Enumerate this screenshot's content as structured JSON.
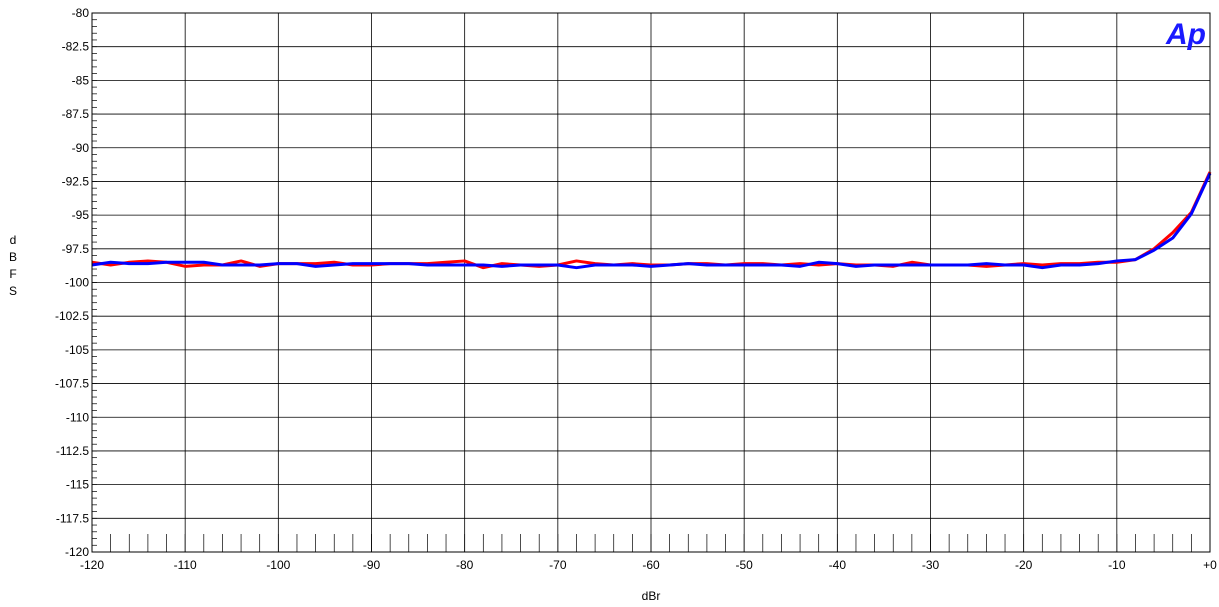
{
  "chart_data": {
    "type": "line",
    "xlabel": "dBr",
    "ylabel": "dBFS",
    "xlim": [
      -120,
      0
    ],
    "ylim": [
      -120,
      -80
    ],
    "x_ticks": [
      -120,
      -110,
      -100,
      -90,
      -80,
      -70,
      -60,
      -50,
      -40,
      -30,
      -20,
      -10,
      0
    ],
    "x_tick_labels": [
      "-120",
      "-110",
      "-100",
      "-90",
      "-80",
      "-70",
      "-60",
      "-50",
      "-40",
      "-30",
      "-20",
      "-10",
      "+0"
    ],
    "y_ticks": [
      -80,
      -82.5,
      -85,
      -87.5,
      -90,
      -92.5,
      -95,
      -97.5,
      -100,
      -102.5,
      -105,
      -107.5,
      -110,
      -112.5,
      -115,
      -117.5,
      -120
    ],
    "y_tick_labels": [
      "-80",
      "-82.5",
      "-85",
      "-87.5",
      "-90",
      "-92.5",
      "-95",
      "-97.5",
      "-100",
      "-102.5",
      "-105",
      "-107.5",
      "-110",
      "-112.5",
      "-115",
      "-117.5",
      "-120"
    ],
    "grid": true,
    "logo_text": "Ap",
    "series": [
      {
        "color": "#ff0000",
        "x": [
          -120,
          -118,
          -116,
          -114,
          -112,
          -110,
          -108,
          -106,
          -104,
          -102,
          -100,
          -98,
          -96,
          -94,
          -92,
          -90,
          -88,
          -86,
          -84,
          -82,
          -80,
          -78,
          -76,
          -74,
          -72,
          -70,
          -68,
          -66,
          -64,
          -62,
          -60,
          -58,
          -56,
          -54,
          -52,
          -50,
          -48,
          -46,
          -44,
          -42,
          -40,
          -38,
          -36,
          -34,
          -32,
          -30,
          -28,
          -26,
          -24,
          -22,
          -20,
          -18,
          -16,
          -14,
          -12,
          -10,
          -8,
          -6,
          -4,
          -2,
          0
        ],
        "values": [
          -98.5,
          -98.7,
          -98.5,
          -98.4,
          -98.5,
          -98.8,
          -98.7,
          -98.7,
          -98.4,
          -98.8,
          -98.6,
          -98.6,
          -98.6,
          -98.5,
          -98.7,
          -98.7,
          -98.6,
          -98.6,
          -98.6,
          -98.5,
          -98.4,
          -98.9,
          -98.6,
          -98.7,
          -98.8,
          -98.7,
          -98.4,
          -98.6,
          -98.7,
          -98.6,
          -98.7,
          -98.7,
          -98.6,
          -98.6,
          -98.7,
          -98.6,
          -98.6,
          -98.7,
          -98.6,
          -98.7,
          -98.6,
          -98.7,
          -98.7,
          -98.8,
          -98.5,
          -98.7,
          -98.7,
          -98.7,
          -98.8,
          -98.7,
          -98.6,
          -98.7,
          -98.6,
          -98.6,
          -98.5,
          -98.5,
          -98.3,
          -97.5,
          -96.3,
          -94.8,
          -91.8
        ]
      },
      {
        "color": "#0000ff",
        "x": [
          -120,
          -118,
          -116,
          -114,
          -112,
          -110,
          -108,
          -106,
          -104,
          -102,
          -100,
          -98,
          -96,
          -94,
          -92,
          -90,
          -88,
          -86,
          -84,
          -82,
          -80,
          -78,
          -76,
          -74,
          -72,
          -70,
          -68,
          -66,
          -64,
          -62,
          -60,
          -58,
          -56,
          -54,
          -52,
          -50,
          -48,
          -46,
          -44,
          -42,
          -40,
          -38,
          -36,
          -34,
          -32,
          -30,
          -28,
          -26,
          -24,
          -22,
          -20,
          -18,
          -16,
          -14,
          -12,
          -10,
          -8,
          -6,
          -4,
          -2,
          0
        ],
        "values": [
          -98.7,
          -98.5,
          -98.6,
          -98.6,
          -98.5,
          -98.5,
          -98.5,
          -98.7,
          -98.7,
          -98.7,
          -98.6,
          -98.6,
          -98.8,
          -98.7,
          -98.6,
          -98.6,
          -98.6,
          -98.6,
          -98.7,
          -98.7,
          -98.7,
          -98.7,
          -98.8,
          -98.7,
          -98.7,
          -98.7,
          -98.9,
          -98.7,
          -98.7,
          -98.7,
          -98.8,
          -98.7,
          -98.6,
          -98.7,
          -98.7,
          -98.7,
          -98.7,
          -98.7,
          -98.8,
          -98.5,
          -98.6,
          -98.8,
          -98.7,
          -98.7,
          -98.7,
          -98.7,
          -98.7,
          -98.7,
          -98.6,
          -98.7,
          -98.7,
          -98.9,
          -98.7,
          -98.7,
          -98.6,
          -98.4,
          -98.3,
          -97.6,
          -96.7,
          -94.9,
          -91.9
        ]
      }
    ]
  }
}
